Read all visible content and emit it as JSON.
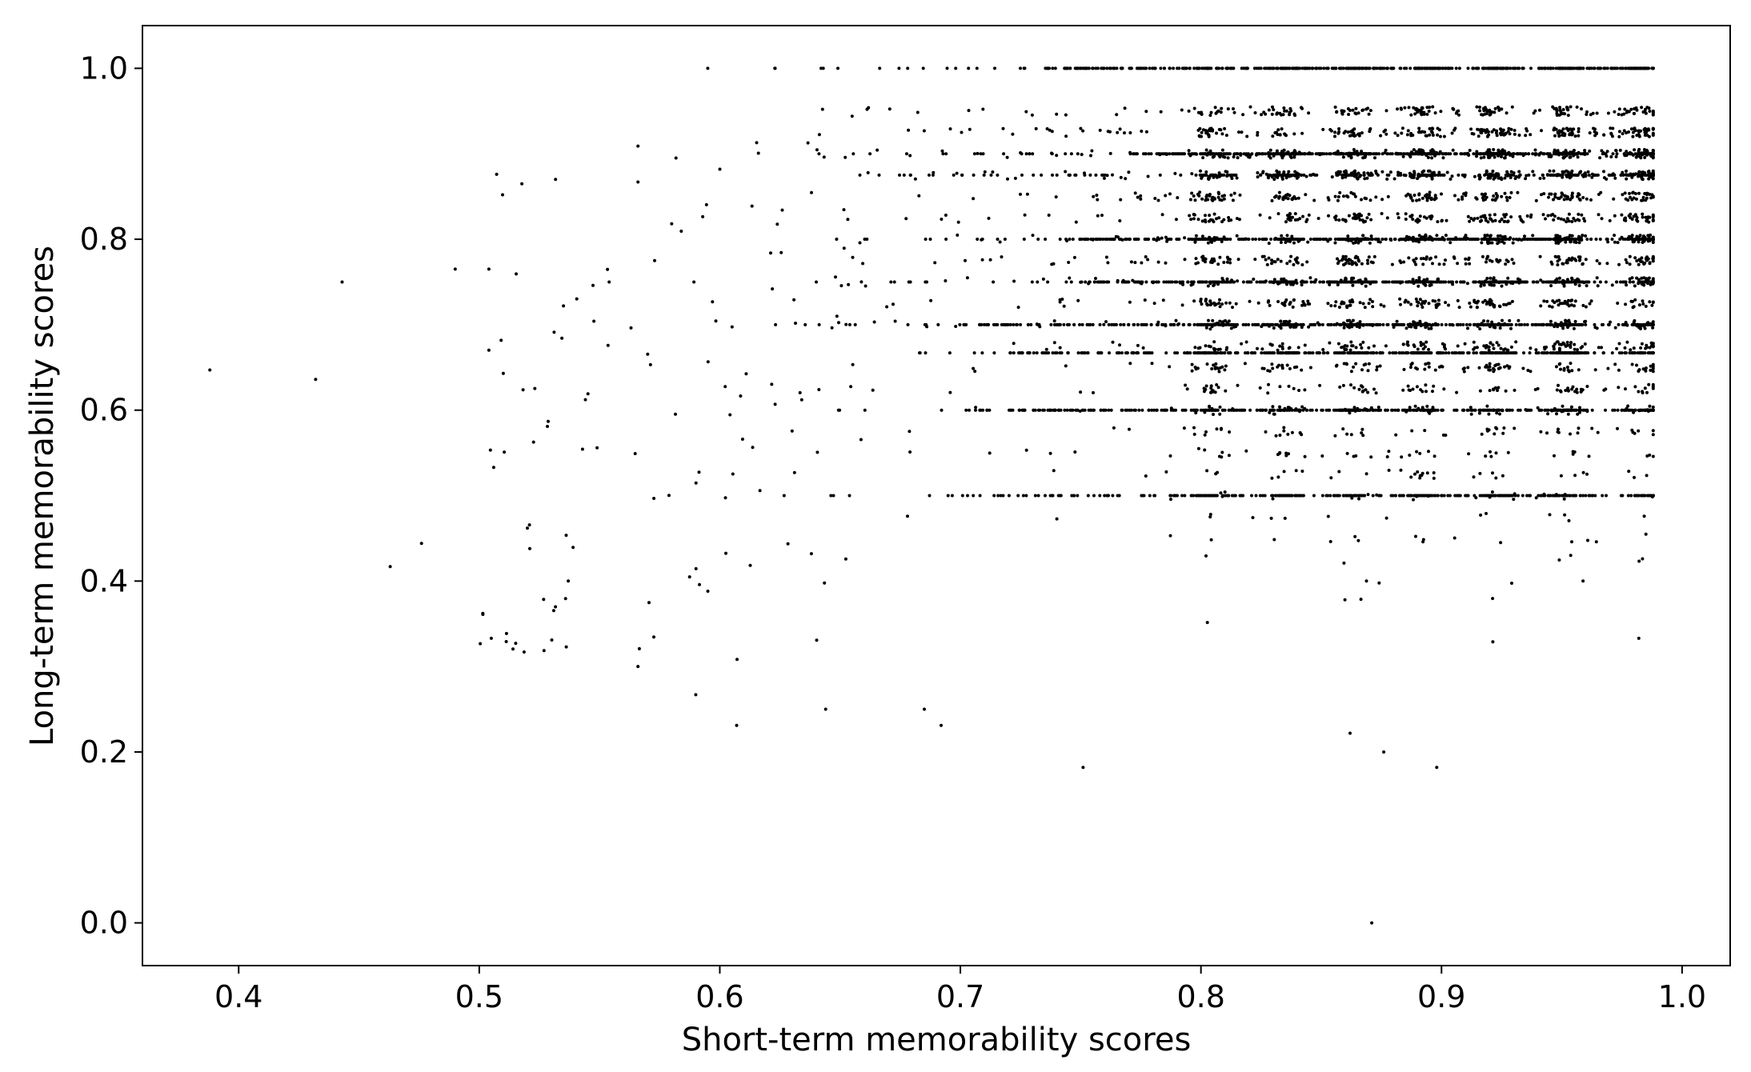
{
  "chart_data": {
    "type": "scatter",
    "title": "",
    "xlabel": "Short-term memorability scores",
    "ylabel": "Long-term memorability scores",
    "xlim": [
      0.36,
      1.02
    ],
    "ylim": [
      -0.05,
      1.05
    ],
    "xticks": [
      0.4,
      0.5,
      0.6,
      0.7,
      0.8,
      0.9,
      1.0
    ],
    "xtick_labels": [
      "0.4",
      "0.5",
      "0.6",
      "0.7",
      "0.8",
      "0.9",
      "1.0"
    ],
    "yticks": [
      0.0,
      0.2,
      0.4,
      0.6,
      0.8,
      1.0
    ],
    "ytick_labels": [
      "0.0",
      "0.2",
      "0.4",
      "0.6",
      "0.8",
      "1.0"
    ],
    "grid": false,
    "marker_color": "#000000",
    "point_count_approx": 5000,
    "dense_columns_x": [
      0.805,
      0.835,
      0.863,
      0.892,
      0.922,
      0.952,
      0.984
    ],
    "common_y_levels": [
      1.0,
      0.9,
      0.875,
      0.8,
      0.75,
      0.7,
      0.667,
      0.6,
      0.5
    ],
    "sample_points": [
      {
        "x": 0.388,
        "y": 0.647
      },
      {
        "x": 0.432,
        "y": 0.636
      },
      {
        "x": 0.443,
        "y": 0.75
      },
      {
        "x": 0.463,
        "y": 0.417
      },
      {
        "x": 0.476,
        "y": 0.444
      },
      {
        "x": 0.49,
        "y": 0.765
      },
      {
        "x": 0.504,
        "y": 0.765
      },
      {
        "x": 0.505,
        "y": 0.333
      },
      {
        "x": 0.506,
        "y": 0.533
      },
      {
        "x": 0.51,
        "y": 0.643
      },
      {
        "x": 0.52,
        "y": 0.462
      },
      {
        "x": 0.521,
        "y": 0.438
      },
      {
        "x": 0.535,
        "y": 0.722
      },
      {
        "x": 0.537,
        "y": 0.4
      },
      {
        "x": 0.549,
        "y": 0.556
      },
      {
        "x": 0.554,
        "y": 0.75
      },
      {
        "x": 0.566,
        "y": 0.909
      },
      {
        "x": 0.566,
        "y": 0.867
      },
      {
        "x": 0.566,
        "y": 0.3
      },
      {
        "x": 0.58,
        "y": 0.818
      },
      {
        "x": 0.59,
        "y": 0.267
      },
      {
        "x": 0.595,
        "y": 1.0
      },
      {
        "x": 0.6,
        "y": 0.882
      },
      {
        "x": 0.607,
        "y": 0.231
      },
      {
        "x": 0.623,
        "y": 1.0
      },
      {
        "x": 0.644,
        "y": 0.25
      },
      {
        "x": 0.655,
        "y": 0.944
      },
      {
        "x": 0.685,
        "y": 0.25
      },
      {
        "x": 0.692,
        "y": 0.231
      },
      {
        "x": 0.751,
        "y": 0.182
      },
      {
        "x": 0.862,
        "y": 0.222
      },
      {
        "x": 0.871,
        "y": 0.0
      },
      {
        "x": 0.876,
        "y": 0.2
      },
      {
        "x": 0.898,
        "y": 0.182
      },
      {
        "x": 0.982,
        "y": 0.333
      }
    ]
  }
}
